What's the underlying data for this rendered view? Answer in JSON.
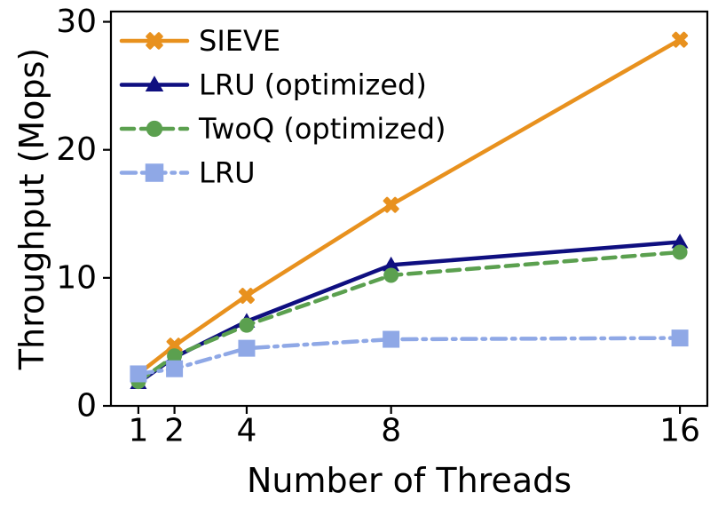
{
  "figure": {
    "background_color": "#ffffff",
    "frame_color": "#000000",
    "x_tick_labels": [
      "1",
      "2",
      "4",
      "8",
      "16"
    ],
    "y_tick_labels": [
      "0",
      "10",
      "20",
      "30"
    ]
  },
  "chart_data": {
    "type": "line",
    "title": "",
    "xlabel": "Number of Threads",
    "ylabel": "Throughput (Mops)",
    "x": [
      1,
      2,
      4,
      8,
      16
    ],
    "x_ticks": [
      1,
      2,
      4,
      8,
      16
    ],
    "y_ticks": [
      0,
      10,
      20,
      30
    ],
    "xlim": [
      0.24,
      16.76
    ],
    "ylim": [
      0,
      30.8
    ],
    "x_scale": "linear",
    "grid": false,
    "legend_position": "upper-left",
    "legend_frame": false,
    "series": [
      {
        "name": "SIEVE",
        "values": [
          2.5,
          4.7,
          8.6,
          15.7,
          28.6
        ],
        "color": "#E8911E",
        "marker": "x-cross",
        "line_style": "solid"
      },
      {
        "name": "LRU (optimized)",
        "values": [
          1.8,
          3.8,
          6.6,
          11.0,
          12.8
        ],
        "color": "#0F0F80",
        "marker": "triangle-up",
        "line_style": "solid"
      },
      {
        "name": "TwoQ (optimized)",
        "values": [
          1.9,
          3.9,
          6.3,
          10.2,
          12.0
        ],
        "color": "#5BA04F",
        "marker": "circle",
        "line_style": "dashed"
      },
      {
        "name": "LRU",
        "values": [
          2.5,
          2.9,
          4.5,
          5.2,
          5.3
        ],
        "color": "#8FA8E6",
        "marker": "square",
        "line_style": "dashdot"
      }
    ]
  }
}
